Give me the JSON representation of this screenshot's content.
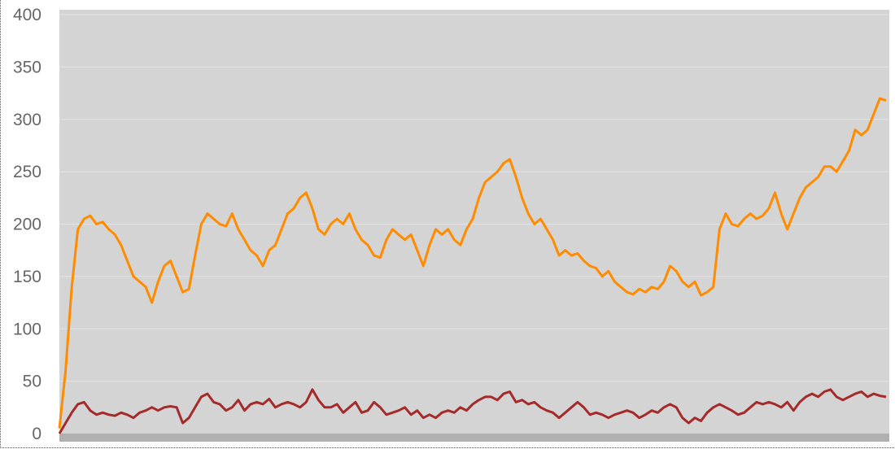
{
  "chart_data": {
    "type": "line",
    "title": "",
    "xlabel": "",
    "ylabel": "",
    "ylim": [
      0,
      400
    ],
    "y_ticks": [
      "0",
      "50",
      "100",
      "150",
      "200",
      "250",
      "300",
      "350",
      "400"
    ],
    "grid": true,
    "legend": "none",
    "colors": {
      "plot_background": "#d4d4d4",
      "gridline": "#e4e4e4",
      "x_tick_band": "#b0b0b0"
    },
    "series": [
      {
        "color": "#ff8c00",
        "points": [
          [
            0,
            5
          ],
          [
            1,
            60
          ],
          [
            2,
            140
          ],
          [
            3,
            195
          ],
          [
            4,
            205
          ],
          [
            5,
            208
          ],
          [
            6,
            200
          ],
          [
            7,
            202
          ],
          [
            8,
            195
          ],
          [
            9,
            190
          ],
          [
            10,
            180
          ],
          [
            11,
            165
          ],
          [
            12,
            150
          ],
          [
            13,
            145
          ],
          [
            14,
            140
          ],
          [
            15,
            125
          ],
          [
            16,
            145
          ],
          [
            17,
            160
          ],
          [
            18,
            165
          ],
          [
            19,
            150
          ],
          [
            20,
            135
          ],
          [
            21,
            138
          ],
          [
            22,
            170
          ],
          [
            23,
            200
          ],
          [
            24,
            210
          ],
          [
            25,
            205
          ],
          [
            26,
            200
          ],
          [
            27,
            198
          ],
          [
            28,
            210
          ],
          [
            29,
            195
          ],
          [
            30,
            185
          ],
          [
            31,
            175
          ],
          [
            32,
            170
          ],
          [
            33,
            160
          ],
          [
            34,
            175
          ],
          [
            35,
            180
          ],
          [
            36,
            195
          ],
          [
            37,
            210
          ],
          [
            38,
            215
          ],
          [
            39,
            225
          ],
          [
            40,
            230
          ],
          [
            41,
            215
          ],
          [
            42,
            195
          ],
          [
            43,
            190
          ],
          [
            44,
            200
          ],
          [
            45,
            205
          ],
          [
            46,
            200
          ],
          [
            47,
            210
          ],
          [
            48,
            195
          ],
          [
            49,
            185
          ],
          [
            50,
            180
          ],
          [
            51,
            170
          ],
          [
            52,
            168
          ],
          [
            53,
            185
          ],
          [
            54,
            195
          ],
          [
            55,
            190
          ],
          [
            56,
            185
          ],
          [
            57,
            190
          ],
          [
            58,
            175
          ],
          [
            59,
            160
          ],
          [
            60,
            180
          ],
          [
            61,
            195
          ],
          [
            62,
            190
          ],
          [
            63,
            195
          ],
          [
            64,
            185
          ],
          [
            65,
            180
          ],
          [
            66,
            195
          ],
          [
            67,
            205
          ],
          [
            68,
            225
          ],
          [
            69,
            240
          ],
          [
            70,
            245
          ],
          [
            71,
            250
          ],
          [
            72,
            258
          ],
          [
            73,
            262
          ],
          [
            74,
            245
          ],
          [
            75,
            225
          ],
          [
            76,
            210
          ],
          [
            77,
            200
          ],
          [
            78,
            205
          ],
          [
            79,
            195
          ],
          [
            80,
            185
          ],
          [
            81,
            170
          ],
          [
            82,
            175
          ],
          [
            83,
            170
          ],
          [
            84,
            172
          ],
          [
            85,
            165
          ],
          [
            86,
            160
          ],
          [
            87,
            158
          ],
          [
            88,
            150
          ],
          [
            89,
            155
          ],
          [
            90,
            145
          ],
          [
            91,
            140
          ],
          [
            92,
            135
          ],
          [
            93,
            133
          ],
          [
            94,
            138
          ],
          [
            95,
            135
          ],
          [
            96,
            140
          ],
          [
            97,
            138
          ],
          [
            98,
            145
          ],
          [
            99,
            160
          ],
          [
            100,
            155
          ],
          [
            101,
            145
          ],
          [
            102,
            140
          ],
          [
            103,
            145
          ],
          [
            104,
            132
          ],
          [
            105,
            135
          ],
          [
            106,
            140
          ],
          [
            107,
            195
          ],
          [
            108,
            210
          ],
          [
            109,
            200
          ],
          [
            110,
            198
          ],
          [
            111,
            205
          ],
          [
            112,
            210
          ],
          [
            113,
            205
          ],
          [
            114,
            208
          ],
          [
            115,
            215
          ],
          [
            116,
            230
          ],
          [
            117,
            210
          ],
          [
            118,
            195
          ],
          [
            119,
            210
          ],
          [
            120,
            225
          ],
          [
            121,
            235
          ],
          [
            122,
            240
          ],
          [
            123,
            245
          ],
          [
            124,
            255
          ],
          [
            125,
            255
          ],
          [
            126,
            250
          ],
          [
            127,
            260
          ],
          [
            128,
            270
          ],
          [
            129,
            290
          ],
          [
            130,
            285
          ],
          [
            131,
            290
          ],
          [
            132,
            305
          ],
          [
            133,
            320
          ],
          [
            134,
            318
          ]
        ]
      },
      {
        "color": "#a52a2a",
        "points": [
          [
            0,
            0
          ],
          [
            1,
            10
          ],
          [
            2,
            20
          ],
          [
            3,
            28
          ],
          [
            4,
            30
          ],
          [
            5,
            22
          ],
          [
            6,
            18
          ],
          [
            7,
            20
          ],
          [
            8,
            18
          ],
          [
            9,
            17
          ],
          [
            10,
            20
          ],
          [
            11,
            18
          ],
          [
            12,
            15
          ],
          [
            13,
            20
          ],
          [
            14,
            22
          ],
          [
            15,
            25
          ],
          [
            16,
            22
          ],
          [
            17,
            25
          ],
          [
            18,
            26
          ],
          [
            19,
            25
          ],
          [
            20,
            10
          ],
          [
            21,
            15
          ],
          [
            22,
            25
          ],
          [
            23,
            35
          ],
          [
            24,
            38
          ],
          [
            25,
            30
          ],
          [
            26,
            28
          ],
          [
            27,
            22
          ],
          [
            28,
            25
          ],
          [
            29,
            32
          ],
          [
            30,
            22
          ],
          [
            31,
            28
          ],
          [
            32,
            30
          ],
          [
            33,
            28
          ],
          [
            34,
            33
          ],
          [
            35,
            25
          ],
          [
            36,
            28
          ],
          [
            37,
            30
          ],
          [
            38,
            28
          ],
          [
            39,
            25
          ],
          [
            40,
            30
          ],
          [
            41,
            42
          ],
          [
            42,
            32
          ],
          [
            43,
            25
          ],
          [
            44,
            25
          ],
          [
            45,
            28
          ],
          [
            46,
            20
          ],
          [
            47,
            25
          ],
          [
            48,
            30
          ],
          [
            49,
            20
          ],
          [
            50,
            22
          ],
          [
            51,
            30
          ],
          [
            52,
            25
          ],
          [
            53,
            18
          ],
          [
            54,
            20
          ],
          [
            55,
            22
          ],
          [
            56,
            25
          ],
          [
            57,
            18
          ],
          [
            58,
            22
          ],
          [
            59,
            15
          ],
          [
            60,
            18
          ],
          [
            61,
            15
          ],
          [
            62,
            20
          ],
          [
            63,
            22
          ],
          [
            64,
            20
          ],
          [
            65,
            25
          ],
          [
            66,
            22
          ],
          [
            67,
            28
          ],
          [
            68,
            32
          ],
          [
            69,
            35
          ],
          [
            70,
            35
          ],
          [
            71,
            32
          ],
          [
            72,
            38
          ],
          [
            73,
            40
          ],
          [
            74,
            30
          ],
          [
            75,
            32
          ],
          [
            76,
            28
          ],
          [
            77,
            30
          ],
          [
            78,
            25
          ],
          [
            79,
            22
          ],
          [
            80,
            20
          ],
          [
            81,
            15
          ],
          [
            82,
            20
          ],
          [
            83,
            25
          ],
          [
            84,
            30
          ],
          [
            85,
            25
          ],
          [
            86,
            18
          ],
          [
            87,
            20
          ],
          [
            88,
            18
          ],
          [
            89,
            15
          ],
          [
            90,
            18
          ],
          [
            91,
            20
          ],
          [
            92,
            22
          ],
          [
            93,
            20
          ],
          [
            94,
            15
          ],
          [
            95,
            18
          ],
          [
            96,
            22
          ],
          [
            97,
            20
          ],
          [
            98,
            25
          ],
          [
            99,
            28
          ],
          [
            100,
            25
          ],
          [
            101,
            15
          ],
          [
            102,
            10
          ],
          [
            103,
            15
          ],
          [
            104,
            12
          ],
          [
            105,
            20
          ],
          [
            106,
            25
          ],
          [
            107,
            28
          ],
          [
            108,
            25
          ],
          [
            109,
            22
          ],
          [
            110,
            18
          ],
          [
            111,
            20
          ],
          [
            112,
            25
          ],
          [
            113,
            30
          ],
          [
            114,
            28
          ],
          [
            115,
            30
          ],
          [
            116,
            28
          ],
          [
            117,
            25
          ],
          [
            118,
            30
          ],
          [
            119,
            22
          ],
          [
            120,
            30
          ],
          [
            121,
            35
          ],
          [
            122,
            38
          ],
          [
            123,
            35
          ],
          [
            124,
            40
          ],
          [
            125,
            42
          ],
          [
            126,
            35
          ],
          [
            127,
            32
          ],
          [
            128,
            35
          ],
          [
            129,
            38
          ],
          [
            130,
            40
          ],
          [
            131,
            35
          ],
          [
            132,
            38
          ],
          [
            133,
            36
          ],
          [
            134,
            35
          ]
        ]
      }
    ]
  }
}
